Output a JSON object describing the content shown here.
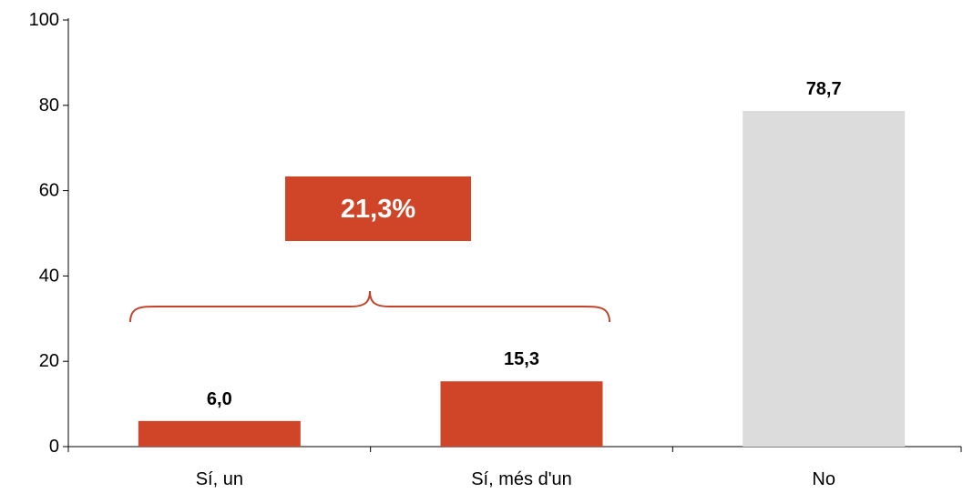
{
  "chart_data": {
    "type": "bar",
    "title": "",
    "xlabel": "",
    "ylabel": "",
    "categories": [
      "Sí, un",
      "Sí, més d'un",
      "No"
    ],
    "values": [
      6.0,
      15.3,
      78.7
    ],
    "value_labels": [
      "6,0",
      "15,3",
      "78,7"
    ],
    "bar_colors": [
      "#d04427",
      "#d04427",
      "#dcdcdc"
    ],
    "ylim": [
      0,
      100
    ],
    "yticks": [
      0,
      20,
      40,
      60,
      80,
      100
    ],
    "ytick_labels": [
      "0",
      "20",
      "40",
      "60",
      "80",
      "100"
    ],
    "grid": false,
    "annotation": {
      "text": "21,3%",
      "spans_categories": [
        "Sí, un",
        "Sí, més d'un"
      ],
      "box_color": "#d04427",
      "brace_color": "#c0432a"
    }
  }
}
